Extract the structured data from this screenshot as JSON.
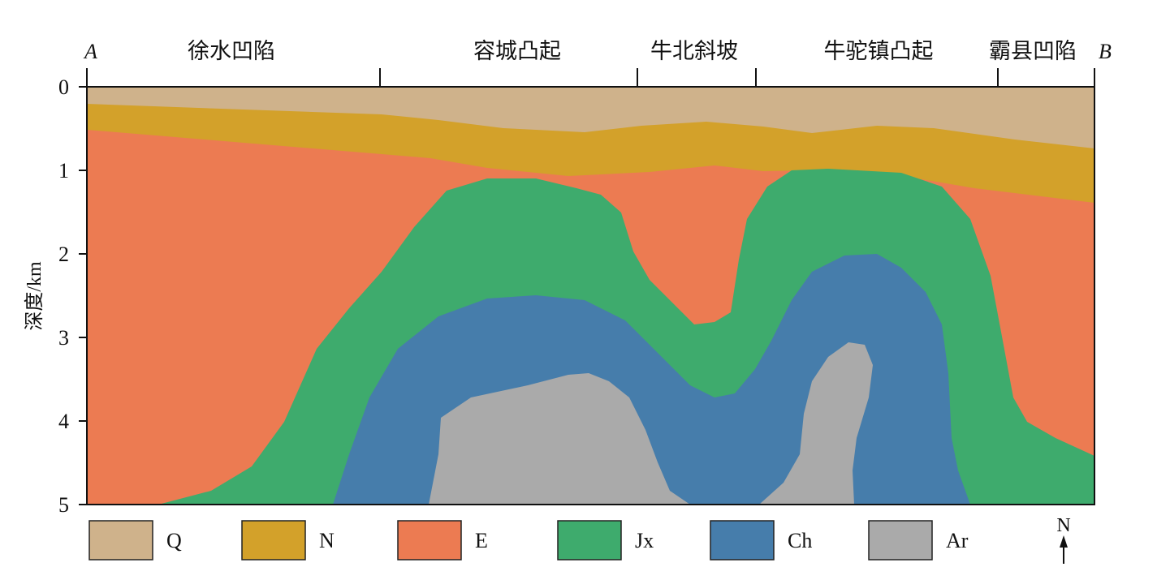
{
  "end_labels": {
    "left": "A",
    "right": "B"
  },
  "regions": [
    "徐水凹陷",
    "容城凸起",
    "牛北斜坡",
    "牛驼镇凸起",
    "霸县凹陷"
  ],
  "y_axis": {
    "label": "深度/km",
    "ticks": [
      "0",
      "1",
      "2",
      "3",
      "4",
      "5"
    ],
    "range_km": [
      0,
      5
    ]
  },
  "legend": [
    {
      "label": "Q",
      "color": "#cfb28b"
    },
    {
      "label": "N",
      "color": "#d3a12a"
    },
    {
      "label": "E",
      "color": "#ec7b52"
    },
    {
      "label": "Jx",
      "color": "#3eab6d"
    },
    {
      "label": "Ch",
      "color": "#467dab"
    },
    {
      "label": "Ar",
      "color": "#aaaaaa"
    }
  ],
  "north_arrow": {
    "label": "N"
  }
}
